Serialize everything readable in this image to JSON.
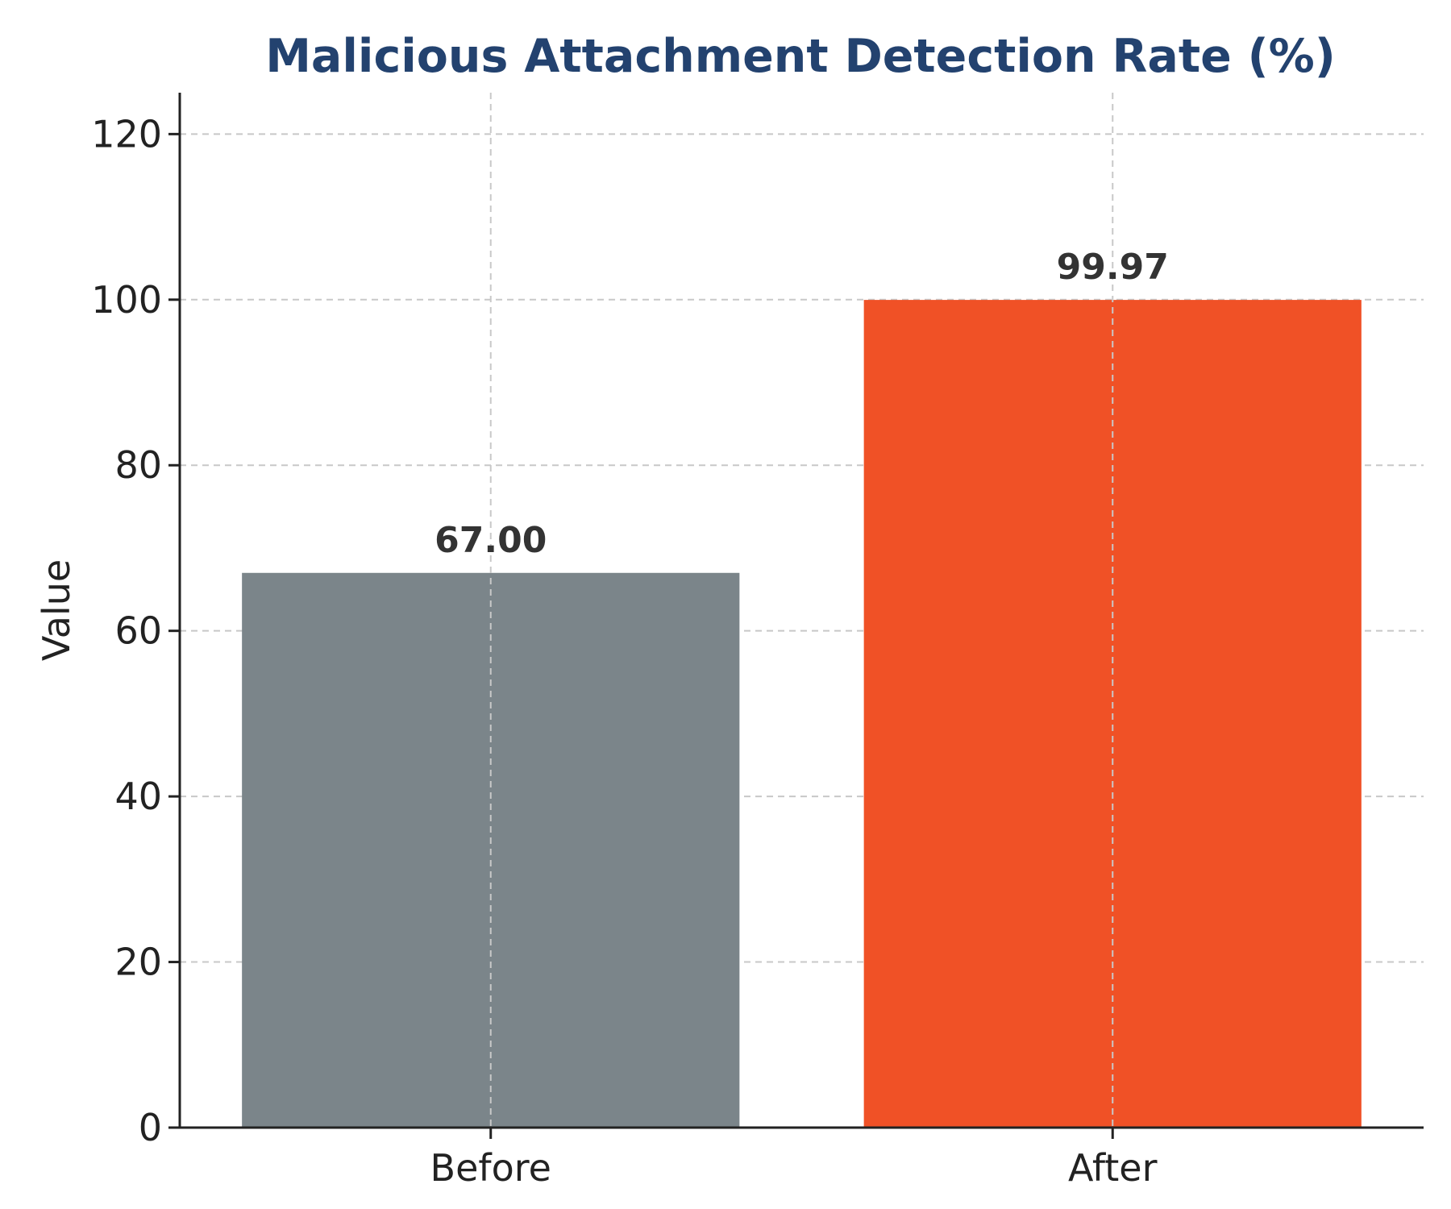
{
  "chart_data": {
    "type": "bar",
    "title": "Malicious Attachment Detection Rate (%)",
    "xlabel": "",
    "ylabel": "Value",
    "categories": [
      "Before",
      "After"
    ],
    "values": [
      67.0,
      99.97
    ],
    "value_labels": [
      "67.00",
      "99.97"
    ],
    "ylim": [
      0,
      125
    ],
    "yticks": [
      0,
      20,
      40,
      60,
      80,
      100,
      120
    ],
    "grid": true,
    "legend": "none",
    "colors": {
      "bars": [
        "#7b858a",
        "#f05126"
      ],
      "title": "#23426f",
      "grid": "#c8c8c8",
      "axis": "#222222"
    }
  }
}
